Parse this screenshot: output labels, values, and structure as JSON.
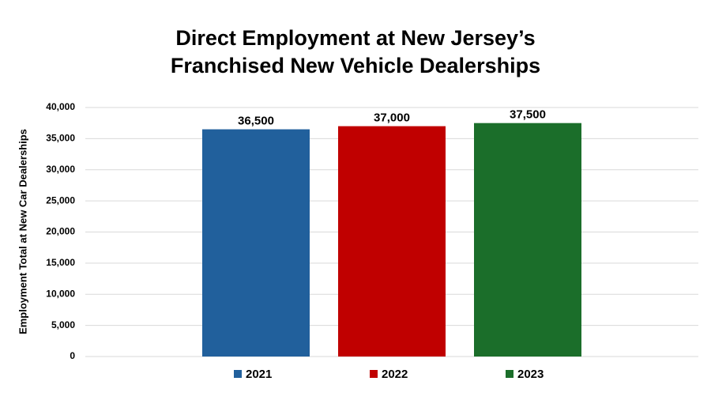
{
  "chart_data": {
    "type": "bar",
    "title": [
      "Direct Employment at New Jersey’s",
      "Franchised New Vehicle Dealerships"
    ],
    "y_label": "Employment Total at New Car Dealerships",
    "categories": [
      null
    ],
    "series": [
      {
        "name": "2021",
        "color": "#21609c",
        "values": [
          36500
        ],
        "value_labels": [
          "36,500"
        ]
      },
      {
        "name": "2022",
        "color": "#c00000",
        "values": [
          37000
        ],
        "value_labels": [
          "37,000"
        ]
      },
      {
        "name": "2023",
        "color": "#1b6e2a",
        "values": [
          37500
        ],
        "value_labels": [
          "37,500"
        ]
      }
    ],
    "ylim": [
      0,
      40000
    ],
    "yticks": [
      {
        "value": 0,
        "label": "0"
      },
      {
        "value": 5000,
        "label": "5,000"
      },
      {
        "value": 10000,
        "label": "10,000"
      },
      {
        "value": 15000,
        "label": "15,000"
      },
      {
        "value": 20000,
        "label": "20,000"
      },
      {
        "value": 25000,
        "label": "25,000"
      },
      {
        "value": 30000,
        "label": "30,000"
      },
      {
        "value": 35000,
        "label": "35,000"
      },
      {
        "value": 40000,
        "label": "40,000"
      }
    ],
    "grid": true,
    "legend": "bottom"
  }
}
